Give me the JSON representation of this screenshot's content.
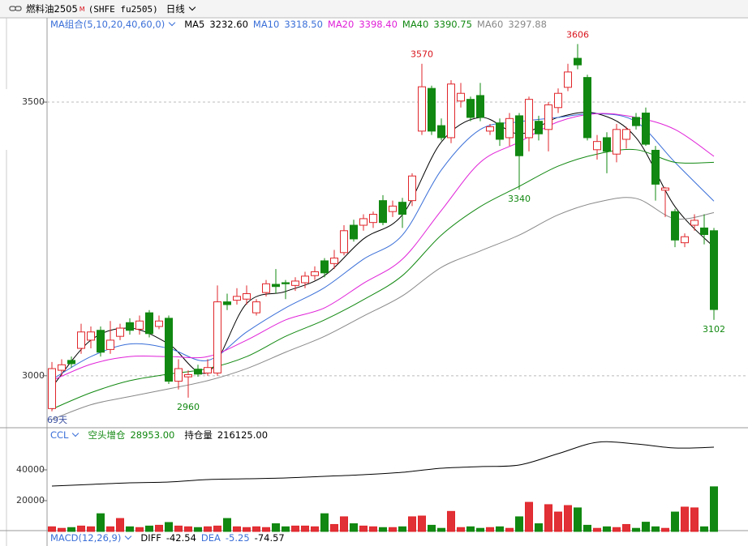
{
  "header": {
    "symbol": "燃料油2505",
    "badge": "M",
    "code": "(SHFE fu2505)",
    "period": "日线"
  },
  "chart_data": [
    {
      "type": "candlestick",
      "legend_title": "MA组合(5,10,20,40,60,0)",
      "up_color": "#e0262b",
      "down_color": "#118811",
      "open": [
        2940,
        3010,
        3028,
        3050,
        3065,
        3083,
        3048,
        3072,
        3097,
        3085,
        3115,
        3090,
        3105,
        2990,
        2998,
        3012,
        3005,
        3005,
        3135,
        3138,
        3140,
        3115,
        3152,
        3167,
        3170,
        3165,
        3170,
        3183,
        3210,
        3205,
        3225,
        3275,
        3275,
        3280,
        3320,
        3300,
        3317,
        3320,
        3447,
        3525,
        3457,
        3435,
        3502,
        3505,
        3512,
        3447,
        3462,
        3435,
        3475,
        3435,
        3465,
        3450,
        3490,
        3527,
        3580,
        3545,
        3413,
        3435,
        3405,
        3432,
        3472,
        3480,
        3412,
        3339,
        3300,
        3243,
        3275,
        3270,
        3265
      ],
      "high": [
        3025,
        3030,
        3035,
        3095,
        3090,
        3090,
        3100,
        3095,
        3105,
        3110,
        3120,
        3110,
        3110,
        3030,
        3010,
        3020,
        3030,
        3165,
        3150,
        3160,
        3165,
        3140,
        3175,
        3195,
        3175,
        3180,
        3190,
        3200,
        3215,
        3230,
        3275,
        3285,
        3295,
        3300,
        3330,
        3320,
        3325,
        3370,
        3570,
        3530,
        3470,
        3540,
        3535,
        3510,
        3535,
        3460,
        3470,
        3480,
        3480,
        3510,
        3475,
        3500,
        3525,
        3570,
        3606,
        3550,
        3440,
        3445,
        3460,
        3455,
        3480,
        3490,
        3420,
        3345,
        3305,
        3260,
        3295,
        3295,
        3270
      ],
      "low": [
        2935,
        3000,
        3015,
        3040,
        3050,
        3035,
        3040,
        3065,
        3075,
        3075,
        3070,
        3085,
        2985,
        2975,
        2960,
        2998,
        3000,
        3000,
        3120,
        3130,
        3130,
        3110,
        3145,
        3150,
        3140,
        3155,
        3160,
        3175,
        3180,
        3195,
        3220,
        3245,
        3265,
        3270,
        3275,
        3290,
        3270,
        3310,
        3440,
        3440,
        3430,
        3425,
        3490,
        3465,
        3465,
        3440,
        3420,
        3420,
        3340,
        3410,
        3430,
        3410,
        3480,
        3520,
        3560,
        3430,
        3395,
        3370,
        3390,
        3415,
        3450,
        3420,
        3320,
        3290,
        3235,
        3235,
        3265,
        3240,
        3102
      ],
      "close": [
        3013,
        3020,
        3022,
        3080,
        3080,
        3043,
        3065,
        3087,
        3083,
        3100,
        3077,
        3100,
        2990,
        3013,
        3002,
        3003,
        3015,
        3135,
        3130,
        3145,
        3150,
        3135,
        3168,
        3163,
        3168,
        3173,
        3182,
        3190,
        3188,
        3215,
        3265,
        3250,
        3287,
        3295,
        3280,
        3310,
        3295,
        3365,
        3528,
        3447,
        3435,
        3533,
        3516,
        3472,
        3472,
        3455,
        3432,
        3470,
        3402,
        3505,
        3442,
        3495,
        3516,
        3555,
        3568,
        3435,
        3428,
        3410,
        3450,
        3450,
        3457,
        3423,
        3350,
        3343,
        3248,
        3254,
        3284,
        3258,
        3121
      ],
      "ylim": [
        2905,
        3654
      ],
      "yticks": [
        3000,
        3500
      ],
      "grid": true,
      "series": [
        {
          "name": "MA5",
          "color": "#000000",
          "last": {
            "value": 3232.6,
            "label": "3232.60"
          },
          "x": [
            0,
            4,
            8,
            12,
            16,
            20,
            24,
            28,
            32,
            36,
            40,
            44,
            48,
            52,
            56,
            60,
            64,
            68
          ],
          "values": [
            2979,
            3065,
            3087,
            3058,
            3006,
            3132,
            3154,
            3183,
            3250,
            3294,
            3427,
            3472,
            3442,
            3472,
            3479,
            3435,
            3309,
            3235
          ]
        },
        {
          "name": "MA10",
          "color": "#3a6fd8",
          "last": {
            "value": 3318.5,
            "label": "3318.50"
          },
          "x": [
            0,
            4,
            8,
            12,
            16,
            20,
            24,
            28,
            32,
            36,
            40,
            44,
            48,
            52,
            56,
            60,
            64,
            68
          ],
          "values": [
            2993,
            3035,
            3058,
            3050,
            3028,
            3080,
            3124,
            3161,
            3213,
            3257,
            3376,
            3450,
            3464,
            3472,
            3479,
            3464,
            3390,
            3319
          ]
        },
        {
          "name": "MA20",
          "color": "#e020d8",
          "last": {
            "value": 3398.4,
            "label": "3398.40"
          },
          "x": [
            0,
            4,
            8,
            12,
            16,
            20,
            24,
            28,
            32,
            36,
            40,
            44,
            48,
            52,
            56,
            60,
            64,
            68
          ],
          "values": [
            2991,
            3021,
            3035,
            3035,
            3035,
            3065,
            3102,
            3124,
            3169,
            3213,
            3302,
            3390,
            3427,
            3464,
            3479,
            3472,
            3450,
            3401
          ]
        },
        {
          "name": "MA40",
          "color": "#118811",
          "last": {
            "value": 3390.75,
            "label": "3390.75"
          },
          "x": [
            0,
            4,
            8,
            12,
            16,
            20,
            24,
            28,
            32,
            36,
            40,
            44,
            48,
            52,
            56,
            60,
            64,
            68
          ],
          "values": [
            2939,
            2969,
            2991,
            3003,
            3013,
            3035,
            3072,
            3102,
            3139,
            3183,
            3257,
            3309,
            3346,
            3383,
            3405,
            3413,
            3390,
            3390
          ]
        },
        {
          "name": "MA60",
          "color": "#888888",
          "last": {
            "value": 3297.88,
            "label": "3297.88"
          },
          "x": [
            0,
            4,
            8,
            12,
            16,
            20,
            24,
            28,
            32,
            36,
            40,
            44,
            48,
            52,
            56,
            60,
            64,
            68
          ],
          "values": [
            2920,
            2947,
            2962,
            2976,
            2991,
            3013,
            3043,
            3072,
            3109,
            3146,
            3198,
            3228,
            3257,
            3294,
            3317,
            3324,
            3287,
            3298
          ]
        }
      ],
      "annotations": [
        {
          "x": 38,
          "value": 3570,
          "color": "#d8141c"
        },
        {
          "x": 54,
          "value": 3606,
          "color": "#d8141c"
        },
        {
          "x": 48,
          "value": 3340,
          "color": "#118811"
        },
        {
          "x": 68,
          "value": 3102,
          "color": "#118811"
        },
        {
          "x": 14,
          "value": 2960,
          "color": "#118811"
        }
      ],
      "period_label": "69天"
    },
    {
      "type": "bar",
      "legend_title": "CCL",
      "values": [
        3000,
        2000,
        2500,
        3500,
        3000,
        11500,
        3000,
        8400,
        3000,
        2500,
        3500,
        4000,
        5800,
        3500,
        3000,
        2500,
        3000,
        3500,
        8400,
        3000,
        2500,
        3000,
        2500,
        5000,
        3000,
        3500,
        3500,
        3000,
        11500,
        4500,
        9500,
        5000,
        3500,
        3000,
        2500,
        2500,
        3000,
        9500,
        10000,
        4000,
        2000,
        13000,
        2500,
        3000,
        2000,
        2500,
        3000,
        2000,
        9500,
        18900,
        5000,
        17400,
        12600,
        16800,
        15300,
        4000,
        2000,
        3000,
        2500,
        4500,
        2000,
        6000,
        3000,
        2000,
        12600,
        15800,
        15300,
        3000,
        29000
      ],
      "ylim": [
        0,
        67368
      ],
      "yticks": [
        20000,
        40000
      ],
      "y2lim": [
        0,
        266000
      ],
      "stats": [
        {
          "name": "空头增仓",
          "value": {
            "value": 28953,
            "label": "28953.00"
          },
          "color": "#118811"
        }
      ],
      "series": [
        {
          "name": "持仓量",
          "axis": "y2",
          "color": "#000000",
          "last": {
            "value": 216125,
            "label": "216125.00"
          },
          "x": [
            0,
            4,
            8,
            12,
            16,
            20,
            24,
            28,
            32,
            36,
            40,
            44,
            48,
            52,
            56,
            60,
            64,
            68
          ],
          "values": [
            116400,
            120500,
            124700,
            126800,
            133000,
            135100,
            137200,
            141300,
            145500,
            151700,
            162100,
            166200,
            170400,
            199500,
            228600,
            224400,
            214000,
            216125
          ]
        }
      ]
    }
  ],
  "macd": {
    "title": "MACD(12,26,9)",
    "items": [
      {
        "name": "DIFF",
        "value": -42.54,
        "color": "#000000"
      },
      {
        "name": "DEA",
        "value": -5.25,
        "color": "#3a6fd8"
      },
      {
        "value": -74.57,
        "color": "#000000"
      }
    ]
  }
}
